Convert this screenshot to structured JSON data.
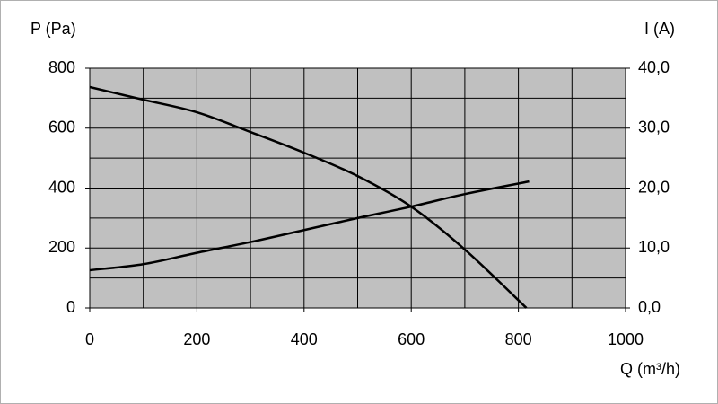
{
  "chart_data": {
    "type": "line",
    "y_label": "P (Pa)",
    "y2_label": "I (A)",
    "x_label": "Q (m³/h)",
    "xlim": [
      0,
      1000
    ],
    "xticks": [
      0,
      200,
      400,
      600,
      800,
      1000
    ],
    "ylim": [
      0,
      800
    ],
    "yticks": [
      0,
      200,
      400,
      600,
      800
    ],
    "y2lim": [
      0,
      40
    ],
    "y2ticks": [
      {
        "value": 0,
        "label": "0,0"
      },
      {
        "value": 10,
        "label": "10,0"
      },
      {
        "value": 20,
        "label": "20,0"
      },
      {
        "value": 30,
        "label": "30,0"
      },
      {
        "value": 40,
        "label": "40,0"
      }
    ],
    "grid": true,
    "xgrid_step": 100,
    "ygrid_step": 100,
    "plot_background": "#c0c0c0",
    "series": [
      {
        "color": "#000000",
        "x": [
          0,
          100,
          200,
          300,
          400,
          500,
          600,
          700,
          815
        ],
        "values": [
          737,
          695,
          653,
          587,
          518,
          440,
          338,
          195,
          0
        ]
      },
      {
        "color": "#000000",
        "axis": "y2",
        "x": [
          0,
          100,
          200,
          300,
          400,
          500,
          600,
          700,
          820
        ],
        "values": [
          6.3,
          7.3,
          9.2,
          11.0,
          13.0,
          15.0,
          16.9,
          19.0,
          21.1
        ]
      }
    ]
  }
}
